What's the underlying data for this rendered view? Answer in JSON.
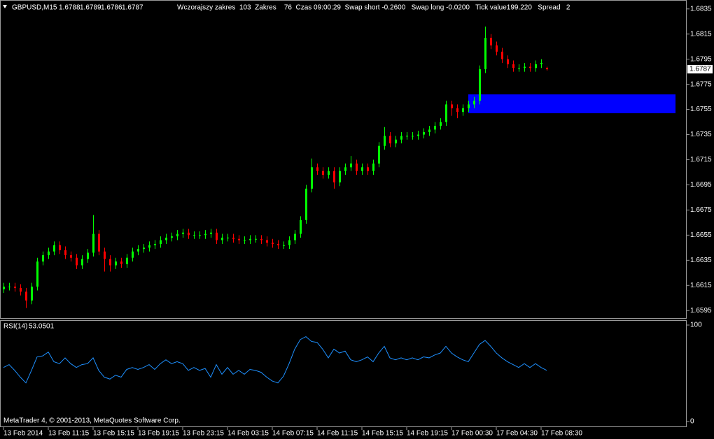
{
  "header": {
    "symbol": "GBPUSD,M15",
    "info": "Wczorajszy zakres  103  Zakres    76  Czas 09:00:29  Swap short -0.2600   Swap long -0.0200   Tick value199.220   Spread   2"
  },
  "footer": "MetaTrader 4, © 2001-2013, MetaQuotes Software Corp.",
  "chart_data": [
    {
      "type": "candlestick",
      "up_color": "#00ff00",
      "down_color": "#ff0000",
      "xlim": [
        0,
        122
      ],
      "ylim": [
        1.6589,
        1.6841
      ],
      "yticks": [
        1.6835,
        1.6815,
        1.6795,
        1.6775,
        1.6755,
        1.6735,
        1.6715,
        1.6695,
        1.6675,
        1.6655,
        1.6635,
        1.6615,
        1.6595
      ],
      "zone": {
        "xlim": [
          83,
          120
        ],
        "ylim": [
          1.6752,
          1.6767
        ],
        "color": "#0000ff"
      },
      "candles": {
        "open": [
          1.6612,
          1.6614,
          1.6614,
          1.6613,
          1.661,
          1.6603,
          1.6614,
          1.6634,
          1.6639,
          1.6642,
          1.6647,
          1.6643,
          1.6639,
          1.6637,
          1.6631,
          1.6636,
          1.6641,
          1.6656,
          1.6642,
          1.6636,
          1.6631,
          1.6634,
          1.6632,
          1.6637,
          1.6642,
          1.6644,
          1.6645,
          1.6647,
          1.6648,
          1.6651,
          1.6653,
          1.6654,
          1.6656,
          1.6657,
          1.6655,
          1.6655,
          1.6655,
          1.6656,
          1.6657,
          1.6651,
          1.6653,
          1.6653,
          1.6652,
          1.6651,
          1.6651,
          1.6652,
          1.6652,
          1.6651,
          1.6649,
          1.6648,
          1.6647,
          1.6647,
          1.6651,
          1.6656,
          1.6667,
          1.6692,
          1.6709,
          1.6706,
          1.6703,
          1.6706,
          1.6697,
          1.6706,
          1.6709,
          1.6712,
          1.6706,
          1.6709,
          1.6706,
          1.6712,
          1.6726,
          1.6734,
          1.6728,
          1.6731,
          1.6734,
          1.6734,
          1.6734,
          1.6735,
          1.6737,
          1.6739,
          1.6742,
          1.6745,
          1.6759,
          1.6756,
          1.6753,
          1.6756,
          1.6759,
          1.6762,
          1.6787,
          1.6812,
          1.6806,
          1.6801,
          1.6795,
          1.6791,
          1.6788,
          1.6788,
          1.6789,
          1.6788,
          1.6791,
          1.6788
        ],
        "high": [
          1.6617,
          1.6617,
          1.6617,
          1.6616,
          1.6613,
          1.6617,
          1.6637,
          1.6642,
          1.6645,
          1.665,
          1.665,
          1.6646,
          1.6642,
          1.664,
          1.6639,
          1.6644,
          1.6671,
          1.6659,
          1.6645,
          1.6639,
          1.6637,
          1.6637,
          1.664,
          1.6645,
          1.6647,
          1.6648,
          1.665,
          1.6651,
          1.6654,
          1.6656,
          1.6657,
          1.6659,
          1.666,
          1.666,
          1.6658,
          1.6658,
          1.6659,
          1.666,
          1.666,
          1.6656,
          1.6656,
          1.6656,
          1.6655,
          1.6654,
          1.6655,
          1.6655,
          1.6655,
          1.6654,
          1.6652,
          1.6651,
          1.665,
          1.6654,
          1.6659,
          1.667,
          1.6695,
          1.6716,
          1.6712,
          1.6709,
          1.6709,
          1.6709,
          1.6709,
          1.6712,
          1.6718,
          1.6715,
          1.6712,
          1.6712,
          1.6715,
          1.6729,
          1.6741,
          1.6737,
          1.6734,
          1.6737,
          1.6737,
          1.6737,
          1.6738,
          1.674,
          1.6742,
          1.6745,
          1.6748,
          1.6762,
          1.6762,
          1.6759,
          1.6759,
          1.6762,
          1.6765,
          1.679,
          1.6821,
          1.6815,
          1.6809,
          1.6804,
          1.6798,
          1.6794,
          1.6791,
          1.6792,
          1.6792,
          1.6794,
          1.6795,
          1.6789
        ],
        "low": [
          1.6609,
          1.6611,
          1.661,
          1.6607,
          1.6597,
          1.66,
          1.6611,
          1.6631,
          1.6636,
          1.6639,
          1.664,
          1.6636,
          1.6634,
          1.6628,
          1.6628,
          1.6633,
          1.6638,
          1.6639,
          1.6626,
          1.6626,
          1.6628,
          1.6629,
          1.6629,
          1.6634,
          1.6639,
          1.6641,
          1.6642,
          1.6644,
          1.6645,
          1.6648,
          1.665,
          1.6651,
          1.6653,
          1.6652,
          1.6652,
          1.6652,
          1.6652,
          1.6653,
          1.6648,
          1.6648,
          1.665,
          1.6649,
          1.6648,
          1.6648,
          1.6648,
          1.6649,
          1.6648,
          1.6646,
          1.6645,
          1.6644,
          1.6644,
          1.6644,
          1.6648,
          1.6653,
          1.6664,
          1.6689,
          1.6703,
          1.67,
          1.67,
          1.6692,
          1.6694,
          1.6703,
          1.6706,
          1.6703,
          1.6703,
          1.6703,
          1.6703,
          1.6709,
          1.6723,
          1.6725,
          1.6725,
          1.6728,
          1.6731,
          1.6731,
          1.6731,
          1.6732,
          1.6734,
          1.6736,
          1.6739,
          1.6742,
          1.675,
          1.6748,
          1.675,
          1.6753,
          1.6756,
          1.6759,
          1.6784,
          1.6803,
          1.6798,
          1.6792,
          1.6788,
          1.6785,
          1.6785,
          1.6785,
          1.6785,
          1.6785,
          1.6788,
          1.6786
        ],
        "close": [
          1.6614,
          1.6614,
          1.6613,
          1.661,
          1.6603,
          1.6614,
          1.6634,
          1.6639,
          1.6642,
          1.6647,
          1.6643,
          1.6639,
          1.6637,
          1.6631,
          1.6636,
          1.6641,
          1.6656,
          1.6642,
          1.6636,
          1.6631,
          1.6634,
          1.6632,
          1.6637,
          1.6642,
          1.6644,
          1.6645,
          1.6647,
          1.6648,
          1.6651,
          1.6653,
          1.6654,
          1.6656,
          1.6657,
          1.6655,
          1.6655,
          1.6655,
          1.6656,
          1.6657,
          1.6651,
          1.6653,
          1.6653,
          1.6652,
          1.6651,
          1.6651,
          1.6652,
          1.6652,
          1.6651,
          1.6649,
          1.6648,
          1.6647,
          1.6647,
          1.6651,
          1.6656,
          1.6667,
          1.6692,
          1.6709,
          1.6706,
          1.6703,
          1.6706,
          1.6697,
          1.6706,
          1.6709,
          1.6712,
          1.6706,
          1.6709,
          1.6706,
          1.6712,
          1.6726,
          1.6734,
          1.6728,
          1.6731,
          1.6734,
          1.6734,
          1.6734,
          1.6735,
          1.6737,
          1.6739,
          1.6742,
          1.6745,
          1.6759,
          1.6756,
          1.6753,
          1.6756,
          1.6759,
          1.6762,
          1.6787,
          1.6812,
          1.6806,
          1.6801,
          1.6795,
          1.6791,
          1.6788,
          1.6788,
          1.6789,
          1.6788,
          1.6791,
          1.6792,
          1.6787
        ]
      }
    },
    {
      "type": "line",
      "title": "RSI(14)",
      "xlim": [
        0,
        122
      ],
      "xticks": [
        {
          "value": 0,
          "label": "13 Feb 2014"
        },
        {
          "value": 8,
          "label": "13 Feb 11:15"
        },
        {
          "value": 16,
          "label": "13 Feb 15:15"
        },
        {
          "value": 24,
          "label": "13 Feb 19:15"
        },
        {
          "value": 32,
          "label": "13 Feb 23:15"
        },
        {
          "value": 40,
          "label": "14 Feb 03:15"
        },
        {
          "value": 48,
          "label": "14 Feb 07:15"
        },
        {
          "value": 56,
          "label": "14 Feb 11:15"
        },
        {
          "value": 64,
          "label": "14 Feb 15:15"
        },
        {
          "value": 72,
          "label": "14 Feb 19:15"
        },
        {
          "value": 80,
          "label": "17 Feb 00:30"
        },
        {
          "value": 88,
          "label": "17 Feb 04:30"
        },
        {
          "value": 96,
          "label": "17 Feb 08:30"
        }
      ],
      "ylim": [
        0,
        100
      ],
      "yticks": [
        100,
        0
      ],
      "series": [
        {
          "color": "#1e90ff",
          "values": [
            56,
            59,
            53,
            46,
            40,
            53,
            67,
            68,
            72,
            62,
            60,
            66,
            60,
            56,
            59,
            60,
            66,
            53,
            46,
            44,
            48,
            46,
            54,
            56,
            54,
            56,
            59,
            54,
            60,
            64,
            60,
            62,
            60,
            53,
            56,
            53,
            55,
            46,
            59,
            49,
            56,
            49,
            53,
            49,
            54,
            53,
            51,
            46,
            42,
            40,
            47,
            60,
            75,
            85,
            88,
            83,
            82,
            75,
            66,
            75,
            71,
            73,
            64,
            62,
            64,
            67,
            62,
            71,
            78,
            66,
            64,
            66,
            64,
            66,
            64,
            67,
            66,
            69,
            71,
            78,
            71,
            67,
            64,
            62,
            71,
            80,
            84,
            78,
            71,
            66,
            62,
            59,
            56,
            60,
            56,
            60,
            56,
            53.0501
          ]
        }
      ]
    }
  ]
}
